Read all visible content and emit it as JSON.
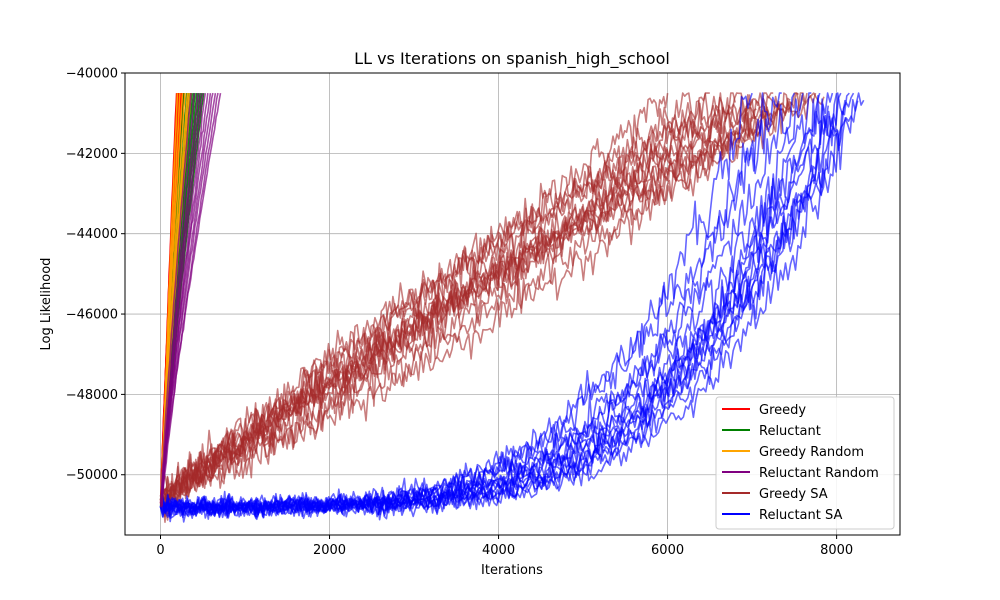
{
  "chart_data": {
    "type": "line",
    "title": "LL vs Iterations on spanish_high_school",
    "xlabel": "Iterations",
    "ylabel": "Log Likelihood",
    "xlim": [
      -420,
      8750
    ],
    "ylim": [
      -51500,
      -40000
    ],
    "xticks": [
      0,
      2000,
      4000,
      6000,
      8000
    ],
    "xtick_labels": [
      "0",
      "2000",
      "4000",
      "6000",
      "8000"
    ],
    "yticks": [
      -50000,
      -48000,
      -46000,
      -44000,
      -42000,
      -40000
    ],
    "ytick_labels": [
      "−50000",
      "−48000",
      "−46000",
      "−44000",
      "−42000",
      "−40000"
    ],
    "grid": true,
    "legend_position": "lower right",
    "series": [
      {
        "name": "Greedy",
        "color": "#ff0000",
        "opacity": 1.0,
        "start_y": -50700,
        "end_y": -40500,
        "runs_end_x": [
          190,
          200,
          215,
          225,
          235,
          245,
          255,
          260,
          270,
          280
        ]
      },
      {
        "name": "Reluctant",
        "color": "#008000",
        "opacity": 0.9,
        "start_y": -50750,
        "end_y": -40500,
        "runs_end_x": [
          280,
          310,
          330,
          350,
          370,
          390,
          410,
          430,
          450,
          470,
          490,
          510
        ]
      },
      {
        "name": "Greedy Random",
        "color": "#ffa500",
        "opacity": 0.9,
        "start_y": -50700,
        "end_y": -40500,
        "runs_end_x": [
          200,
          230,
          260,
          290,
          320,
          340,
          360
        ]
      },
      {
        "name": "Reluctant Random",
        "color": "#800080",
        "opacity": 0.7,
        "start_y": -50750,
        "end_y": -40500,
        "runs_end_x": [
          360,
          400,
          440,
          470,
          500,
          530,
          560,
          590,
          620,
          650,
          680,
          710
        ]
      },
      {
        "name": "Greedy SA",
        "color": "#a52a2a",
        "opacity": 0.6,
        "start_y": -50600,
        "end_y": -40600,
        "runs_end_x": [
          6000,
          6300,
          6500,
          6650,
          6800,
          6950,
          7050,
          7150,
          7250,
          7350,
          7450,
          7550,
          7650,
          7750,
          7850
        ],
        "band_spread": 1500
      },
      {
        "name": "Reluctant SA",
        "color": "#0000ff",
        "opacity": 0.6,
        "start_y": -50800,
        "end_y": -40500,
        "runs_end_x": [
          7000,
          7200,
          7350,
          7500,
          7600,
          7700,
          7800,
          7900,
          7950,
          8000,
          8050,
          8100,
          8150,
          8200,
          8250,
          8320
        ],
        "band_spread": 1200
      }
    ]
  }
}
